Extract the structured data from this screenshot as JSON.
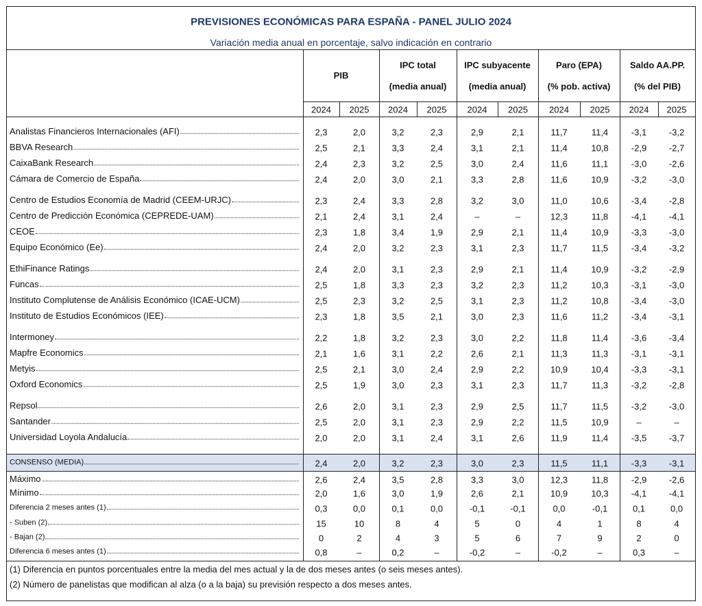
{
  "header": {
    "title": "PREVISIONES ECONÓMICAS PARA ESPAÑA - PANEL JULIO 2024",
    "subtitle": "Variación media anual en porcentaje, salvo indicación en contrario"
  },
  "table": {
    "columns": [
      {
        "label": "PIB",
        "years": [
          "2024",
          "2025"
        ]
      },
      {
        "label": "IPC total",
        "sub": "(media anual)",
        "years": [
          "2024",
          "2025"
        ]
      },
      {
        "label": "IPC subyacente",
        "sub": "(media anual)",
        "years": [
          "2024",
          "2025"
        ]
      },
      {
        "label": "Paro (EPA)",
        "sub": "(% pob. activa)",
        "years": [
          "2024",
          "2025"
        ]
      },
      {
        "label": "Saldo AA.PP.",
        "sub": "(% del PIB)",
        "years": [
          "2024",
          "2025"
        ]
      }
    ],
    "sections": [
      [
        {
          "label": "Analistas Financieros Internacionales (AFI)",
          "values": [
            "2,3",
            "2,0",
            "3,2",
            "2,3",
            "2,9",
            "2,1",
            "11,7",
            "11,4",
            "-3,1",
            "-3,2"
          ]
        },
        {
          "label": "BBVA Research",
          "values": [
            "2,5",
            "2,1",
            "3,3",
            "2,4",
            "3,1",
            "2,1",
            "11,4",
            "10,8",
            "-2,9",
            "-2,7"
          ]
        },
        {
          "label": "CaixaBank Research",
          "values": [
            "2,4",
            "2,3",
            "3,2",
            "2,5",
            "3,0",
            "2,4",
            "11,6",
            "11,1",
            "-3,0",
            "-2,6"
          ]
        },
        {
          "label": "Cámara de Comercio de España",
          "values": [
            "2,4",
            "2,0",
            "3,0",
            "2,1",
            "3,3",
            "2,8",
            "11,6",
            "10,9",
            "-3,2",
            "-3,0"
          ]
        }
      ],
      [
        {
          "label": "Centro de Estudios Economía de Madrid (CEEM-URJC)",
          "values": [
            "2,3",
            "2,4",
            "3,3",
            "2,8",
            "3,2",
            "3,0",
            "11,0",
            "10,6",
            "-3,4",
            "-2,8"
          ]
        },
        {
          "label": "Centro de Predicción Económica (CEPREDE-UAM)",
          "values": [
            "2,1",
            "2,4",
            "3,1",
            "2,4",
            "–",
            "–",
            "12,3",
            "11,8",
            "-4,1",
            "-4,1"
          ]
        },
        {
          "label": "CEOE",
          "values": [
            "2,3",
            "1,8",
            "3,4",
            "1,9",
            "2,9",
            "2,1",
            "11,4",
            "10,9",
            "-3,3",
            "-3,0"
          ]
        },
        {
          "label": "Equipo Económico (Ee)",
          "values": [
            "2,4",
            "2,0",
            "3,2",
            "2,3",
            "3,1",
            "2,3",
            "11,7",
            "11,5",
            "-3,4",
            "-3,2"
          ]
        }
      ],
      [
        {
          "label": "EthiFinance Ratings",
          "values": [
            "2,4",
            "2,0",
            "3,1",
            "2,3",
            "2,9",
            "2,1",
            "11,4",
            "10,9",
            "-3,2",
            "-2,9"
          ]
        },
        {
          "label": "Funcas",
          "values": [
            "2,5",
            "1,8",
            "3,3",
            "2,3",
            "3,2",
            "2,3",
            "11,2",
            "10,3",
            "-3,1",
            "-3,0"
          ]
        },
        {
          "label": "Instituto Complutense de Análisis Económico (ICAE-UCM)",
          "values": [
            "2,5",
            "2,3",
            "3,2",
            "2,5",
            "3,1",
            "2,3",
            "11,2",
            "10,8",
            "-3,4",
            "-3,0"
          ]
        },
        {
          "label": "Instituto de Estudios Económicos (IEE)",
          "values": [
            "2,3",
            "1,8",
            "3,5",
            "2,1",
            "3,0",
            "2,3",
            "11,6",
            "11,2",
            "-3,4",
            "-3,1"
          ]
        }
      ],
      [
        {
          "label": "Intermoney",
          "values": [
            "2,2",
            "1,8",
            "3,2",
            "2,3",
            "3,0",
            "2,2",
            "11,8",
            "11,4",
            "-3,6",
            "-3,4"
          ]
        },
        {
          "label": "Mapfre Economics",
          "values": [
            "2,1",
            "1,6",
            "3,1",
            "2,2",
            "2,6",
            "2,1",
            "11,3",
            "11,3",
            "-3,1",
            "-3,1"
          ]
        },
        {
          "label": "Metyis",
          "values": [
            "2,5",
            "2,1",
            "3,0",
            "2,4",
            "2,9",
            "2,2",
            "10,9",
            "10,4",
            "-3,3",
            "-3,1"
          ]
        },
        {
          "label": "Oxford Economics",
          "values": [
            "2,5",
            "1,9",
            "3,0",
            "2,3",
            "3,1",
            "2,3",
            "11,7",
            "11,3",
            "-3,2",
            "-2,8"
          ]
        }
      ],
      [
        {
          "label": "Repsol",
          "values": [
            "2,6",
            "2,0",
            "3,1",
            "2,3",
            "2,9",
            "2,5",
            "11,7",
            "11,5",
            "-3,2",
            "-3,0"
          ]
        },
        {
          "label": "Santander",
          "values": [
            "2,5",
            "2,0",
            "3,1",
            "2,3",
            "2,9",
            "2,2",
            "11,5",
            "10,9",
            "–",
            "–"
          ]
        },
        {
          "label": "Universidad Loyola Andalucía",
          "values": [
            "2,0",
            "2,0",
            "3,1",
            "2,4",
            "3,1",
            "2,6",
            "11,9",
            "11,4",
            "-3,5",
            "-3,7"
          ]
        }
      ]
    ],
    "consensus": {
      "label": "CONSENSO (MEDIA)",
      "values": [
        "2,4",
        "2,0",
        "3,2",
        "2,3",
        "3,0",
        "2,3",
        "11,5",
        "11,1",
        "-3,3",
        "-3,1"
      ]
    },
    "stats": [
      {
        "label": "Máximo",
        "values": [
          "2,6",
          "2,4",
          "3,5",
          "2,8",
          "3,3",
          "3,0",
          "12,3",
          "11,8",
          "-2,9",
          "-2,6"
        ]
      },
      {
        "label": "Mínimo",
        "values": [
          "2,0",
          "1,6",
          "3,0",
          "1,9",
          "2,6",
          "2,1",
          "10,9",
          "10,3",
          "-4,1",
          "-4,1"
        ]
      },
      {
        "label": "Diferencia  2 meses antes (1)",
        "values": [
          "0,3",
          "0,0",
          "0,1",
          "0,0",
          "-0,1",
          "-0,1",
          "0,0",
          "-0,1",
          "0,1",
          "0,0"
        ]
      },
      {
        "label": "- Suben (2)",
        "values": [
          "15",
          "10",
          "8",
          "4",
          "5",
          "0",
          "4",
          "1",
          "8",
          "4"
        ]
      },
      {
        "label": "- Bajan (2)",
        "values": [
          "0",
          "2",
          "4",
          "3",
          "5",
          "6",
          "7",
          "9",
          "2",
          "0"
        ]
      },
      {
        "label": "Diferencia 6 meses antes  (1)",
        "values": [
          "0,8",
          "–",
          "0,2",
          "–",
          "-0,2",
          "–",
          "-0,2",
          "–",
          "0,3",
          "–"
        ]
      }
    ]
  },
  "footnotes": [
    "(1) Diferencia en puntos porcentuales entre la media del mes actual y la de dos meses antes (o seis meses antes).",
    "(2) Número de panelistas que modifican al alza (o a la baja) su previsión respecto a dos meses antes."
  ]
}
